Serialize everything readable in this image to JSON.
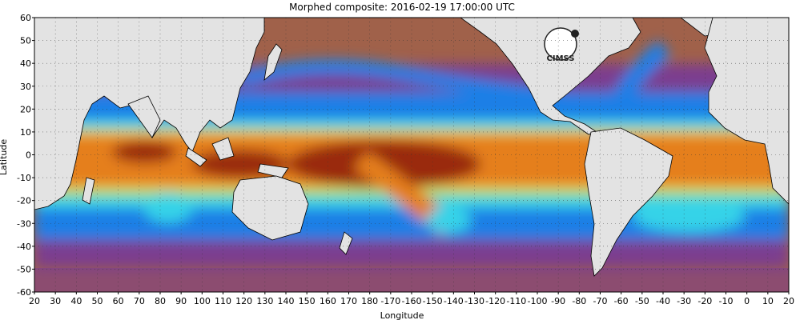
{
  "map": {
    "title": "Morphed composite: 2016-02-19 17:00:00 UTC",
    "xlabel": "Longitude",
    "ylabel": "Latitude",
    "logo_text": "CIMSS",
    "lat_ticks": [
      "60",
      "50",
      "40",
      "30",
      "20",
      "10",
      "0",
      "-10",
      "-20",
      "-30",
      "-40",
      "-50",
      "-60"
    ],
    "lon_ticks": [
      "20",
      "30",
      "40",
      "50",
      "60",
      "70",
      "80",
      "90",
      "100",
      "110",
      "120",
      "130",
      "140",
      "150",
      "160",
      "170",
      "180",
      "-170",
      "-160",
      "-150",
      "-140",
      "-130",
      "-120",
      "-110",
      "-100",
      "-90",
      "-80",
      "-70",
      "-60",
      "-50",
      "-40",
      "-30",
      "-20",
      "-10",
      "0",
      "10",
      "20"
    ],
    "colors": {
      "land": "#e3e3e3",
      "dry": "#a0614a",
      "purple": "#7b3d8f",
      "blue": "#1f7fe6",
      "cyan": "#35d3e8",
      "green": "#8ee07a",
      "yellow": "#f2d44a",
      "orange": "#e57f1e",
      "dark": "#9a2c08"
    }
  }
}
